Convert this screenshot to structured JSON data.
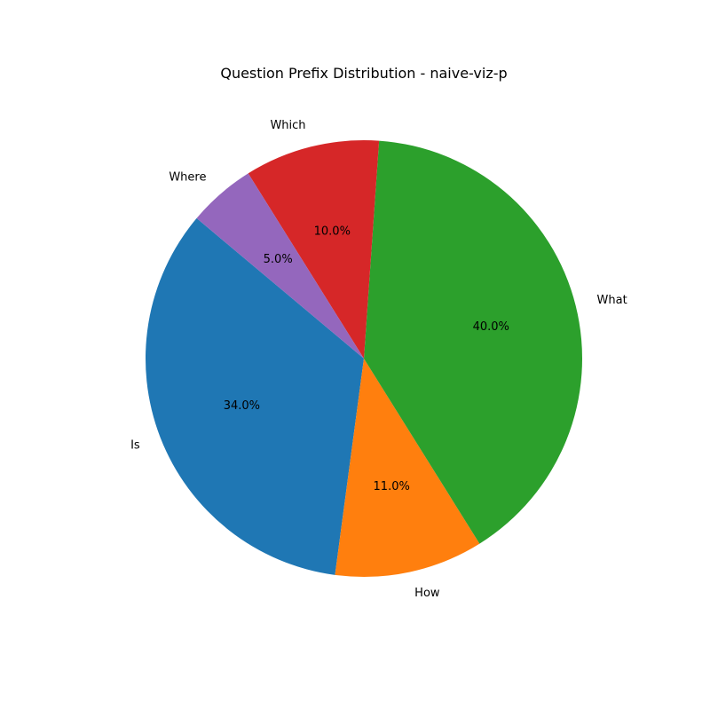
{
  "chart_data": {
    "type": "pie",
    "title": "Question Prefix Distribution - naive-viz-p",
    "categories": [
      "Is",
      "How",
      "What",
      "Which",
      "Where"
    ],
    "values": [
      34.0,
      11.0,
      40.0,
      10.0,
      5.0
    ],
    "percent_labels": [
      "34.0%",
      "11.0%",
      "40.0%",
      "10.0%",
      "5.0%"
    ],
    "colors": [
      "#1f77b4",
      "#ff7f0e",
      "#2ca02c",
      "#d62728",
      "#9467bd"
    ],
    "start_angle_deg": 140,
    "direction": "counterclockwise",
    "legend": "none"
  }
}
